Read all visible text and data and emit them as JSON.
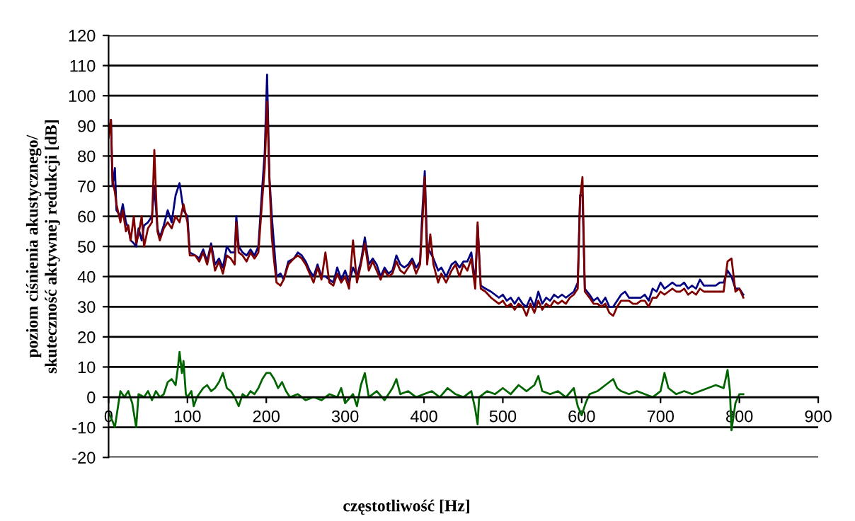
{
  "chart_data": {
    "type": "line",
    "xlabel": "częstotliwość [Hz]",
    "ylabel": "poziom ciśnienia akustycznego/\nskuteczność aktywnej redukcji [dB]",
    "xlim": [
      0,
      900
    ],
    "xticks": [
      0,
      100,
      200,
      300,
      400,
      500,
      600,
      700,
      800,
      900
    ],
    "ylim": [
      -20,
      120
    ],
    "yticks": [
      -20,
      -10,
      0,
      10,
      20,
      30,
      40,
      50,
      60,
      70,
      80,
      90,
      100,
      110,
      120
    ],
    "grid": "y",
    "legend": false,
    "marker": "none",
    "line_style": "solid",
    "series": [
      {
        "color": "#000080",
        "x": [
          0,
          3,
          5,
          8,
          10,
          15,
          18,
          22,
          25,
          28,
          32,
          35,
          38,
          42,
          45,
          50,
          55,
          58,
          62,
          65,
          70,
          75,
          80,
          85,
          90,
          95,
          100,
          103,
          110,
          115,
          120,
          125,
          130,
          135,
          140,
          145,
          150,
          155,
          160,
          162,
          165,
          170,
          175,
          180,
          185,
          190,
          195,
          198,
          201,
          204,
          207,
          210,
          213,
          218,
          222,
          228,
          235,
          240,
          245,
          250,
          255,
          260,
          265,
          270,
          275,
          280,
          285,
          290,
          295,
          300,
          305,
          310,
          315,
          320,
          325,
          330,
          335,
          340,
          345,
          350,
          355,
          360,
          365,
          370,
          375,
          380,
          385,
          390,
          395,
          398,
          401,
          404,
          408,
          412,
          418,
          422,
          428,
          435,
          440,
          445,
          450,
          455,
          460,
          465,
          468,
          472,
          478,
          485,
          490,
          495,
          500,
          505,
          510,
          515,
          520,
          525,
          530,
          535,
          540,
          545,
          550,
          555,
          560,
          565,
          570,
          575,
          580,
          585,
          590,
          595,
          598,
          601,
          604,
          610,
          615,
          620,
          625,
          630,
          635,
          640,
          645,
          650,
          655,
          660,
          665,
          670,
          675,
          680,
          685,
          690,
          695,
          700,
          705,
          710,
          715,
          720,
          725,
          730,
          735,
          740,
          745,
          750,
          755,
          760,
          765,
          770,
          775,
          780,
          785,
          790,
          795,
          800,
          805
        ],
        "values": [
          88,
          92,
          70,
          76,
          62,
          60,
          64,
          58,
          56,
          52,
          51,
          50,
          56,
          52,
          57,
          58,
          60,
          70,
          56,
          53,
          57,
          62,
          58,
          67,
          71,
          62,
          60,
          48,
          47,
          46,
          49,
          45,
          51,
          44,
          46,
          43,
          50,
          48,
          48,
          60,
          50,
          48,
          47,
          49,
          47,
          50,
          70,
          81,
          107,
          73,
          60,
          50,
          40,
          41,
          39,
          45,
          46,
          48,
          47,
          45,
          42,
          40,
          44,
          40,
          40,
          39,
          38,
          43,
          39,
          42,
          38,
          43,
          40,
          45,
          53,
          44,
          46,
          44,
          40,
          43,
          41,
          42,
          47,
          44,
          43,
          44,
          46,
          43,
          45,
          62,
          75,
          50,
          48,
          46,
          42,
          43,
          40,
          44,
          45,
          43,
          45,
          45,
          48,
          38,
          57,
          37,
          36,
          35,
          34,
          33,
          34,
          32,
          33,
          31,
          33,
          31,
          30,
          33,
          30,
          35,
          31,
          33,
          32,
          34,
          33,
          34,
          33,
          34,
          35,
          38,
          67,
          67,
          36,
          34,
          32,
          33,
          31,
          33,
          30,
          30,
          32,
          34,
          35,
          33,
          33,
          33,
          33,
          34,
          32,
          36,
          35,
          38,
          36,
          37,
          38,
          37,
          37,
          38,
          36,
          37,
          36,
          39,
          37,
          37,
          37,
          37,
          38,
          38,
          42,
          40,
          36,
          36,
          34
        ]
      },
      {
        "color": "#800000",
        "x": [
          0,
          3,
          5,
          8,
          10,
          15,
          18,
          22,
          25,
          28,
          32,
          35,
          38,
          42,
          45,
          50,
          55,
          58,
          62,
          65,
          70,
          75,
          80,
          85,
          90,
          95,
          100,
          103,
          110,
          115,
          120,
          125,
          130,
          135,
          140,
          145,
          150,
          155,
          160,
          162,
          165,
          170,
          175,
          180,
          185,
          190,
          195,
          198,
          201,
          204,
          207,
          210,
          213,
          218,
          222,
          228,
          235,
          240,
          245,
          250,
          255,
          260,
          265,
          270,
          275,
          280,
          285,
          290,
          295,
          300,
          305,
          310,
          315,
          320,
          325,
          330,
          335,
          340,
          345,
          350,
          355,
          360,
          365,
          370,
          375,
          380,
          385,
          390,
          395,
          398,
          401,
          404,
          408,
          412,
          418,
          422,
          428,
          435,
          440,
          445,
          450,
          455,
          460,
          465,
          468,
          472,
          478,
          485,
          490,
          495,
          500,
          505,
          510,
          515,
          520,
          525,
          530,
          535,
          540,
          545,
          550,
          555,
          560,
          565,
          570,
          575,
          580,
          585,
          590,
          595,
          598,
          601,
          604,
          610,
          615,
          620,
          625,
          630,
          635,
          640,
          645,
          650,
          655,
          660,
          665,
          670,
          675,
          680,
          685,
          690,
          695,
          700,
          705,
          710,
          715,
          720,
          725,
          730,
          735,
          740,
          745,
          750,
          755,
          760,
          765,
          770,
          775,
          780,
          785,
          790,
          795,
          800,
          805
        ],
        "values": [
          86,
          92,
          72,
          68,
          64,
          58,
          62,
          55,
          57,
          52,
          60,
          51,
          54,
          60,
          50,
          56,
          58,
          82,
          55,
          52,
          56,
          58,
          56,
          60,
          58,
          64,
          58,
          47,
          47,
          45,
          48,
          44,
          50,
          42,
          45,
          41,
          47,
          46,
          44,
          58,
          48,
          47,
          45,
          48,
          46,
          48,
          66,
          76,
          98,
          72,
          53,
          45,
          38,
          37,
          39,
          44,
          46,
          47,
          46,
          44,
          41,
          38,
          43,
          39,
          48,
          38,
          37,
          41,
          38,
          40,
          36,
          52,
          38,
          44,
          51,
          42,
          45,
          42,
          39,
          42,
          40,
          41,
          45,
          42,
          41,
          43,
          45,
          41,
          44,
          58,
          73,
          44,
          54,
          44,
          38,
          41,
          38,
          42,
          44,
          40,
          44,
          42,
          46,
          36,
          58,
          36,
          35,
          33,
          32,
          31,
          32,
          30,
          31,
          29,
          31,
          30,
          27,
          31,
          28,
          32,
          29,
          31,
          30,
          32,
          31,
          32,
          31,
          33,
          34,
          36,
          66,
          73,
          35,
          33,
          31,
          31,
          30,
          31,
          28,
          27,
          30,
          32,
          32,
          32,
          31,
          31,
          32,
          32,
          30,
          33,
          33,
          35,
          34,
          35,
          36,
          35,
          35,
          36,
          34,
          35,
          34,
          36,
          35,
          35,
          35,
          35,
          35,
          35,
          45,
          46,
          35,
          36,
          33
        ]
      },
      {
        "color": "#006400",
        "x": [
          0,
          5,
          8,
          12,
          15,
          20,
          25,
          30,
          35,
          38,
          45,
          50,
          55,
          60,
          65,
          70,
          75,
          80,
          85,
          88,
          90,
          93,
          95,
          98,
          100,
          105,
          108,
          112,
          120,
          125,
          130,
          135,
          140,
          145,
          150,
          155,
          160,
          165,
          170,
          175,
          180,
          185,
          190,
          195,
          200,
          205,
          210,
          215,
          220,
          225,
          230,
          240,
          250,
          260,
          270,
          280,
          290,
          295,
          300,
          310,
          315,
          320,
          325,
          330,
          340,
          350,
          360,
          365,
          370,
          380,
          390,
          400,
          410,
          420,
          430,
          440,
          450,
          460,
          465,
          468,
          470,
          480,
          490,
          500,
          510,
          520,
          530,
          540,
          545,
          550,
          560,
          570,
          580,
          590,
          595,
          600,
          605,
          610,
          620,
          630,
          640,
          645,
          650,
          660,
          670,
          680,
          690,
          700,
          705,
          710,
          720,
          730,
          740,
          750,
          760,
          770,
          780,
          785,
          788,
          790,
          795,
          800,
          805
        ],
        "values": [
          -5,
          -8,
          -10,
          -3,
          2,
          0,
          2,
          -2,
          -10,
          1,
          0,
          2,
          -1,
          2,
          0,
          1,
          5,
          6,
          4,
          10,
          15,
          8,
          12,
          1,
          0,
          2,
          -3,
          0,
          3,
          4,
          2,
          3,
          5,
          8,
          3,
          2,
          0,
          -3,
          1,
          0,
          2,
          1,
          3,
          6,
          8,
          8,
          6,
          3,
          5,
          2,
          0,
          1,
          -1,
          0,
          -1,
          1,
          0,
          3,
          -2,
          1,
          -3,
          4,
          8,
          0,
          2,
          -1,
          3,
          6,
          1,
          2,
          0,
          1,
          2,
          0,
          3,
          1,
          0,
          2,
          -4,
          -9,
          0,
          2,
          1,
          3,
          1,
          4,
          2,
          4,
          7,
          2,
          1,
          2,
          0,
          3,
          -3,
          -6,
          -2,
          1,
          2,
          4,
          6,
          3,
          2,
          1,
          2,
          1,
          0,
          2,
          8,
          3,
          1,
          2,
          1,
          2,
          3,
          4,
          3,
          9,
          2,
          -11,
          -2,
          1,
          1
        ]
      }
    ]
  }
}
